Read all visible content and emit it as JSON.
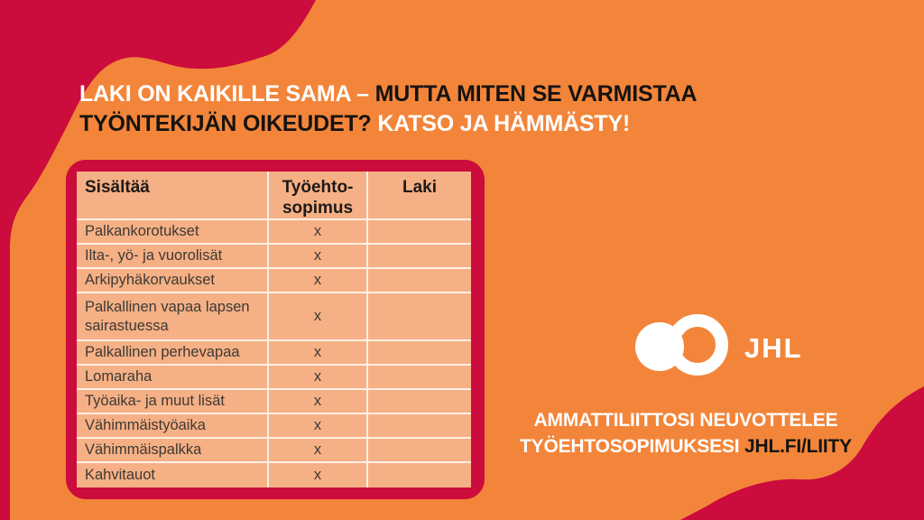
{
  "headline": {
    "seg1_white": "LAKI ON KAIKILLE SAMA – ",
    "seg2_black": "MUTTA MITEN SE VARMISTAA TYÖNTEKIJÄN OIKEUDET? ",
    "seg3_white": "KATSO JA HÄMMÄSTY!"
  },
  "table": {
    "headers": {
      "content": "Sisältää",
      "tes": "Työehto-\nsopimus",
      "laki": "Laki"
    },
    "rows": [
      {
        "label": "Palkankorotukset",
        "tes": "x",
        "laki": ""
      },
      {
        "label": "Ilta-, yö- ja vuorolisät",
        "tes": "x",
        "laki": ""
      },
      {
        "label": "Arkipyhäkorvaukset",
        "tes": "x",
        "laki": ""
      },
      {
        "label": "Palkallinen vapaa lapsen sairastuessa",
        "tes": "x",
        "laki": ""
      },
      {
        "label": "Palkallinen perhevapaa",
        "tes": "x",
        "laki": ""
      },
      {
        "label": "Lomaraha",
        "tes": "x",
        "laki": ""
      },
      {
        "label": "Työaika- ja muut lisät",
        "tes": "x",
        "laki": ""
      },
      {
        "label": "Vähimmäistyöaika",
        "tes": "x",
        "laki": ""
      },
      {
        "label": "Vähimmäispalkka",
        "tes": "x",
        "laki": ""
      },
      {
        "label": "Kahvitauot",
        "tes": "x",
        "laki": ""
      }
    ]
  },
  "logo": {
    "text": "JHL"
  },
  "tagline": {
    "line1_white": "AMMATTILIITTOSI NEUVOTTELEE",
    "line2_white": "TYÖEHTOSOPIMUKSESI ",
    "line2_black": "JHL.FI/LIITY"
  },
  "colors": {
    "background_orange": "#F3853A",
    "accent_crimson": "#CB0C3C",
    "table_cell_peach": "#F5B085",
    "grid_line_white": "#FFFFFF",
    "text_dark": "#3E3935",
    "headline_white": "#FFFFFF",
    "headline_black": "#161310"
  }
}
